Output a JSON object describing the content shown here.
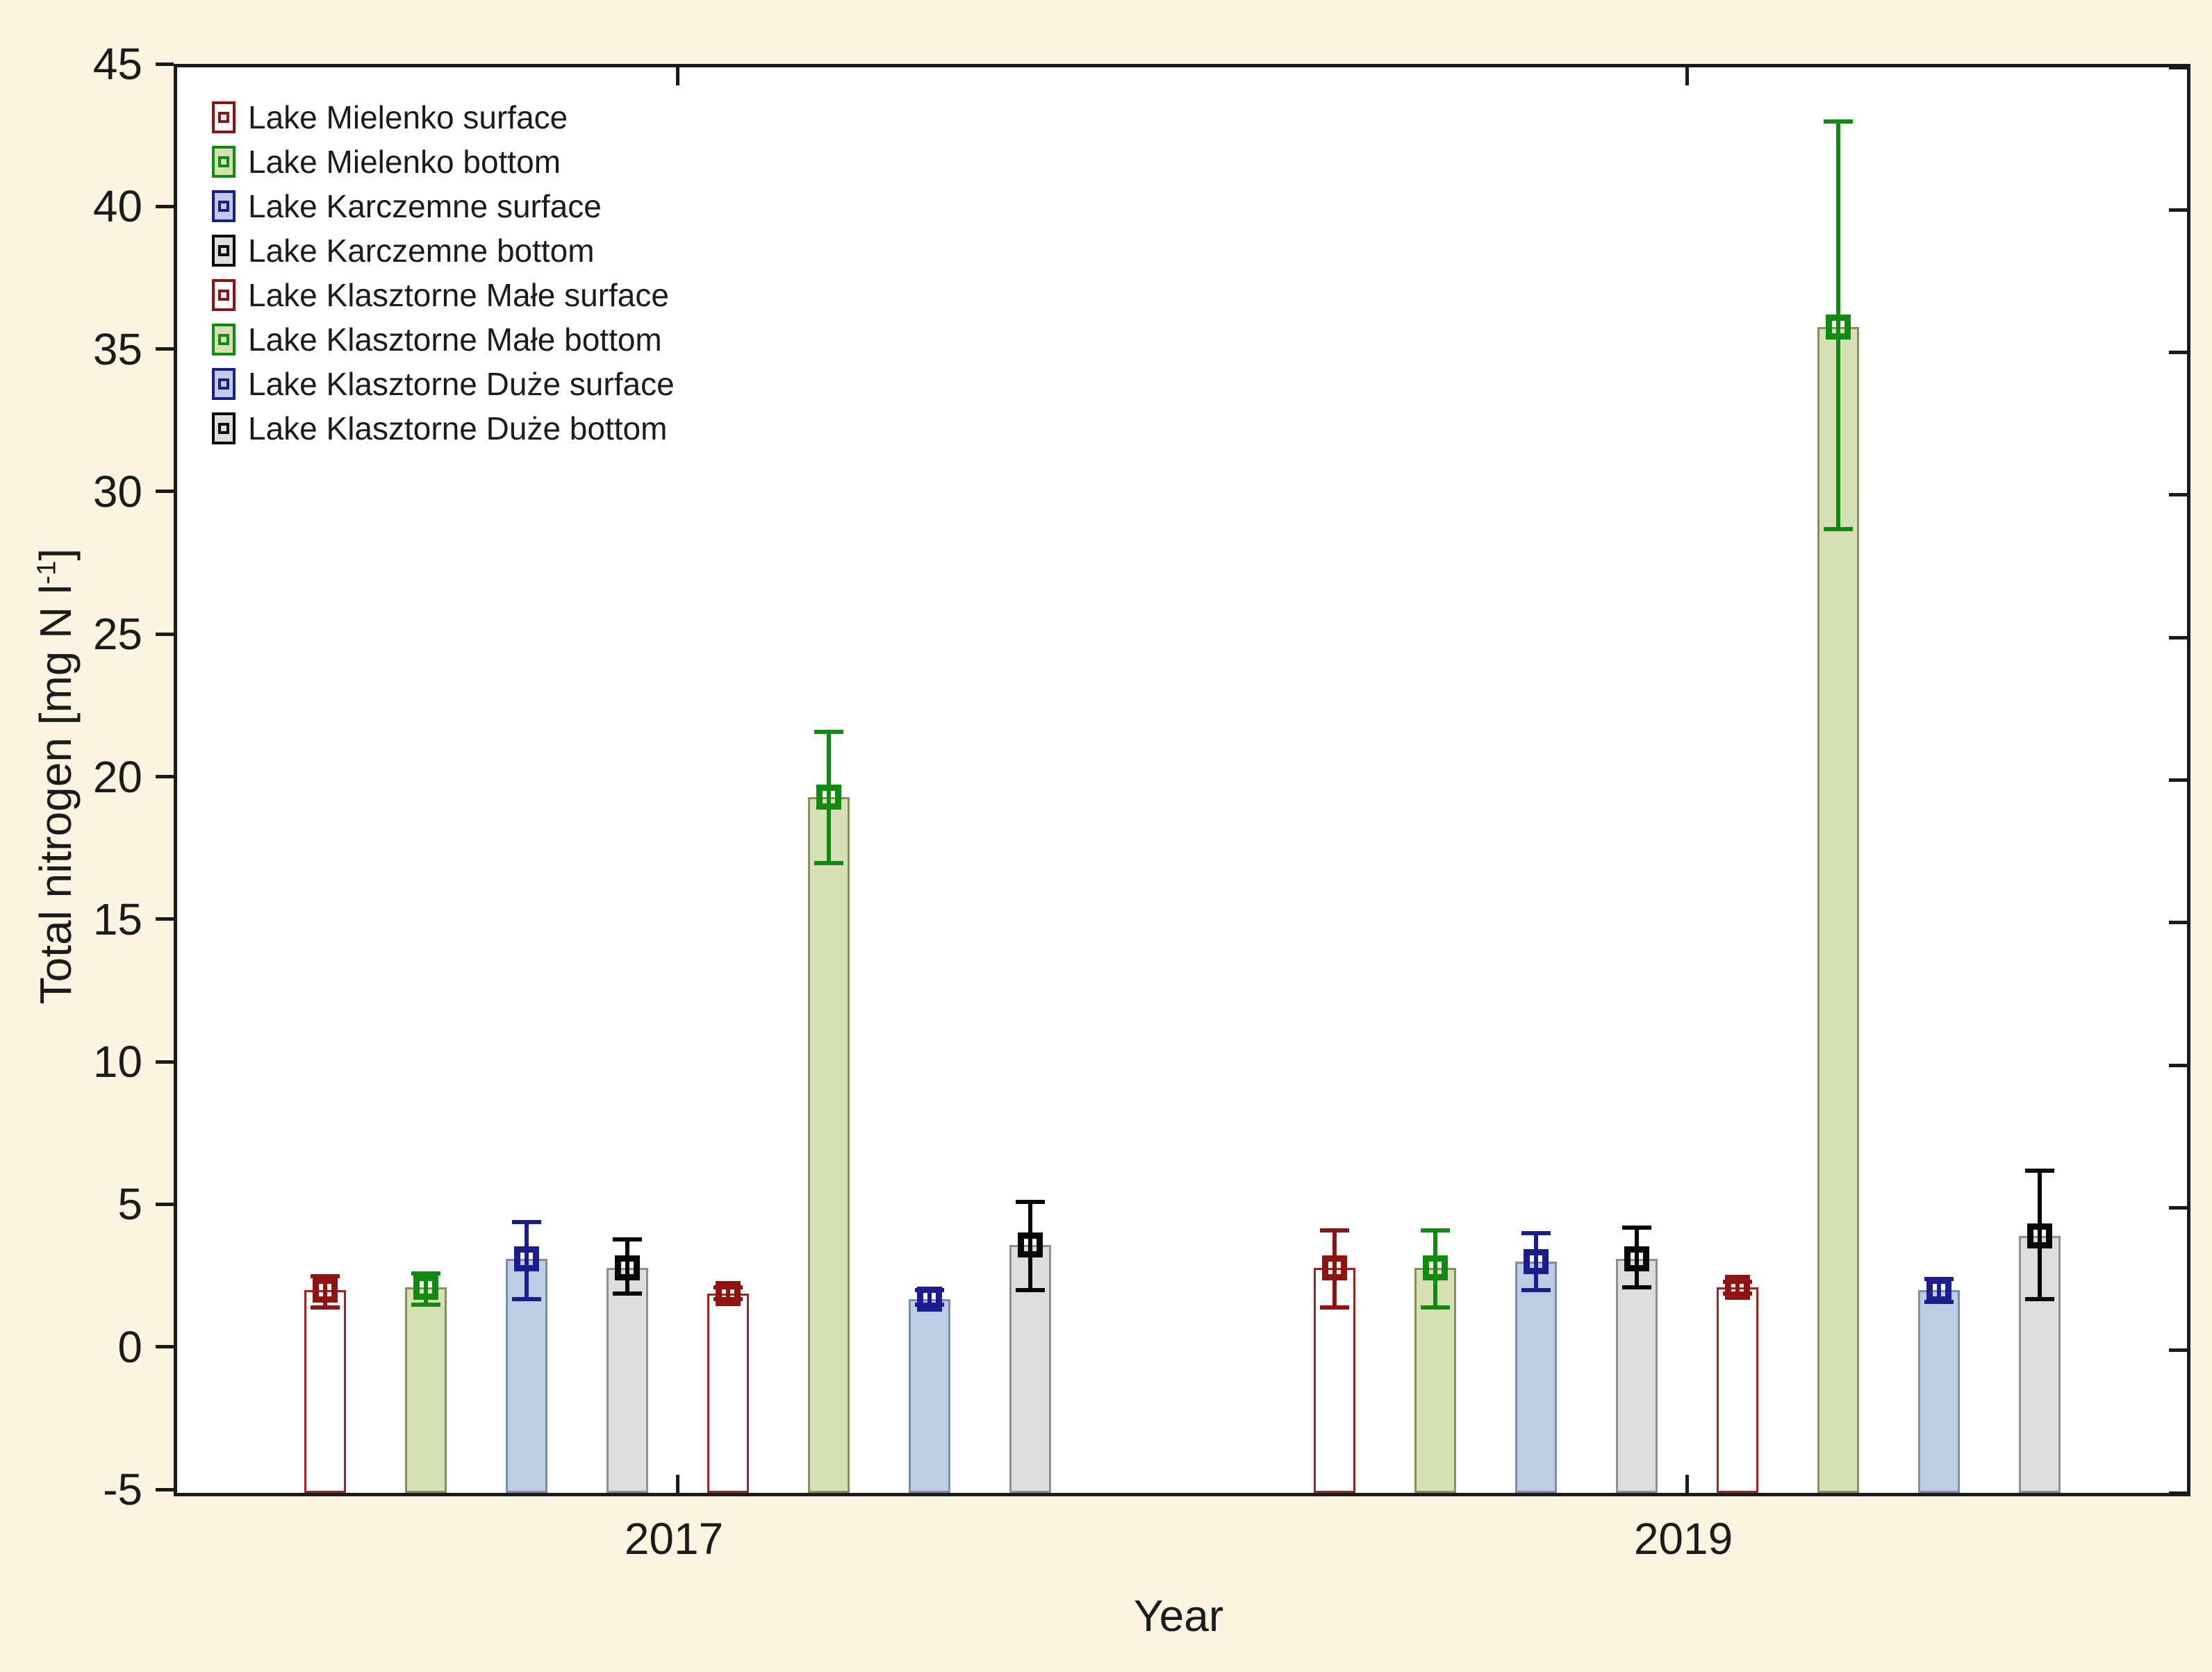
{
  "chart_data": {
    "type": "bar",
    "title": "",
    "xlabel": "Year",
    "ylabel": "Total nitrogen [mg N l⁻¹]",
    "ylabel_parts": {
      "pre": "Total nitrogen [mg N l",
      "sup": "-1",
      "post": "]"
    },
    "ylim": [
      -5,
      45
    ],
    "yticks": [
      -5,
      0,
      5,
      10,
      15,
      20,
      25,
      30,
      35,
      40,
      45
    ],
    "categories": [
      "2017",
      "2019"
    ],
    "bar_baseline": -5,
    "grid": false,
    "legend_position": "inside-top-left",
    "error_bars": "symmetric whiskers with open-square mean marker at bar top",
    "series": [
      {
        "name": "Lake Mielenko surface",
        "fill": "#FFFFFF",
        "edge": "#A02420",
        "marker": "#8F1310",
        "values": [
          2.1,
          2.9
        ],
        "err_low": [
          1.5,
          1.5
        ],
        "err_high": [
          2.6,
          4.2
        ]
      },
      {
        "name": "Lake Mielenko bottom",
        "fill": "#D6E0B4",
        "edge": "#85905F",
        "marker": "#108A10",
        "values": [
          2.2,
          2.9
        ],
        "err_low": [
          1.6,
          1.5
        ],
        "err_high": [
          2.7,
          4.2
        ]
      },
      {
        "name": "Lake Karczemne surface",
        "fill": "#BDCEE4",
        "edge": "#7D8DA9",
        "marker": "#1C1C8F",
        "values": [
          3.2,
          3.1
        ],
        "err_low": [
          1.8,
          2.1
        ],
        "err_high": [
          4.5,
          4.1
        ]
      },
      {
        "name": "Lake Karczemne bottom",
        "fill": "#DDDDDD",
        "edge": "#8F8F8F",
        "marker": "#070707",
        "values": [
          2.9,
          3.2
        ],
        "err_low": [
          2.0,
          2.2
        ],
        "err_high": [
          3.9,
          4.3
        ]
      },
      {
        "name": "Lake Klasztorne Małe surface",
        "fill": "#FFFFFF",
        "edge": "#A02420",
        "marker": "#8F1310",
        "values": [
          2.0,
          2.2
        ],
        "err_low": [
          1.8,
          2.0
        ],
        "err_high": [
          2.2,
          2.4
        ]
      },
      {
        "name": "Lake Klasztorne Małe bottom",
        "fill": "#D6E0B4",
        "edge": "#85905F",
        "marker": "#108A10",
        "values": [
          19.4,
          35.9
        ],
        "err_low": [
          17.1,
          28.8
        ],
        "err_high": [
          21.7,
          43.1
        ]
      },
      {
        "name": "Lake Klasztorne Duże surface",
        "fill": "#BDCEE4",
        "edge": "#7D8DA9",
        "marker": "#1C1C8F",
        "values": [
          1.8,
          2.1
        ],
        "err_low": [
          1.6,
          1.7
        ],
        "err_high": [
          2.1,
          2.5
        ]
      },
      {
        "name": "Lake Klasztorne Duże bottom",
        "fill": "#DDDDDD",
        "edge": "#8F8F8F",
        "marker": "#070707",
        "values": [
          3.7,
          4.0
        ],
        "err_low": [
          2.1,
          1.8
        ],
        "err_high": [
          5.2,
          6.3
        ]
      }
    ]
  },
  "colors": {
    "background": "#FBF5E2",
    "plot_background": "#FFFFFF",
    "frame": "#1A1A1A",
    "text": "#1B1B1B"
  }
}
